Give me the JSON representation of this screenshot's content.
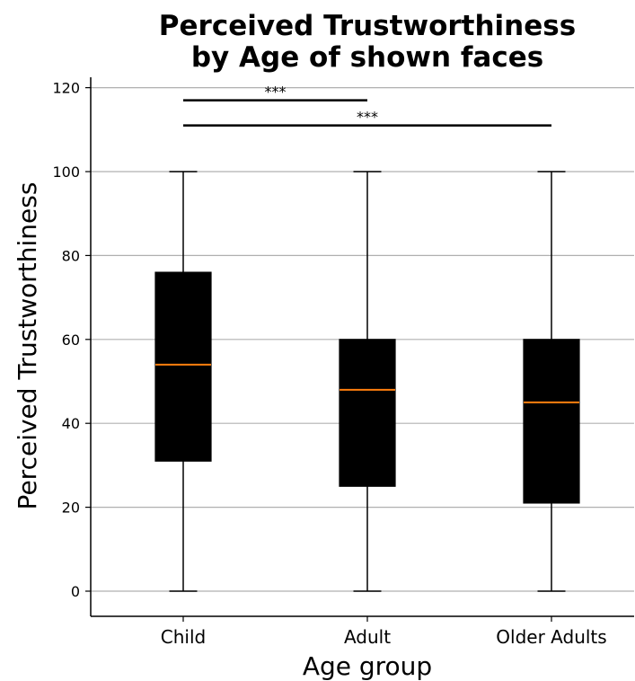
{
  "chart_data": {
    "type": "box",
    "title": [
      "Perceived Trustworthiness",
      "by Age of shown faces"
    ],
    "xlabel": "Age group",
    "ylabel": "Perceived Trustworthiness",
    "ylim": [
      -6,
      123
    ],
    "yticks": [
      0,
      20,
      40,
      60,
      80,
      100,
      120
    ],
    "grid": "y",
    "categories": [
      "Child",
      "Adult",
      "Older Adults"
    ],
    "boxes": [
      {
        "category": "Child",
        "whisker_low": 0,
        "q1": 31,
        "median": 54,
        "q3": 76,
        "whisker_high": 100
      },
      {
        "category": "Adult",
        "whisker_low": 0,
        "q1": 25,
        "median": 48,
        "q3": 60,
        "whisker_high": 100
      },
      {
        "category": "Older Adults",
        "whisker_low": 0,
        "q1": 21,
        "median": 45,
        "q3": 60,
        "whisker_high": 100
      }
    ],
    "significance": [
      {
        "from": "Child",
        "to": "Adult",
        "y": 117,
        "label": "***"
      },
      {
        "from": "Child",
        "to": "Older Adults",
        "y": 111,
        "label": "***"
      }
    ],
    "colors": {
      "box_fill": "#000000",
      "median": "#ff7f0e",
      "grid": "#b0b0b0"
    }
  }
}
